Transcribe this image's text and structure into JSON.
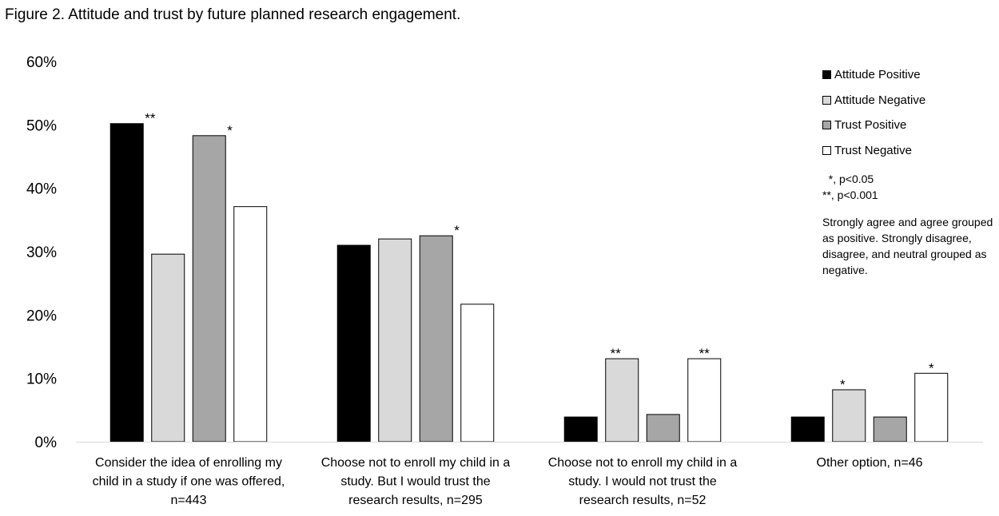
{
  "title": "Figure 2. Attitude and trust by future planned research engagement.",
  "chart_data": {
    "type": "bar",
    "title": "Figure 2. Attitude and trust by future planned research engagement.",
    "xlabel": "",
    "ylabel": "",
    "ylim": [
      0,
      60
    ],
    "y_ticks": [
      "0%",
      "10%",
      "20%",
      "30%",
      "40%",
      "50%",
      "60%"
    ],
    "grid": false,
    "legend_position": "top-right",
    "categories": [
      [
        "Consider the idea of enrolling my",
        "child in a study if one was offered,",
        "n=443"
      ],
      [
        "Choose not to enroll my child in a",
        "study. But I would trust the",
        "research results, n=295"
      ],
      [
        "Choose not to enroll my child in a",
        "study. I would not trust the",
        "research results, n=52"
      ],
      [
        "Other option, n=46"
      ]
    ],
    "series": [
      {
        "name": "Attitude Positive",
        "color": "#000000",
        "values": [
          50.2,
          31.0,
          3.9,
          3.9
        ],
        "significance": [
          "**",
          "",
          "",
          ""
        ]
      },
      {
        "name": "Attitude Negative",
        "color": "#d9d9d9",
        "values": [
          29.6,
          32.0,
          13.1,
          8.2
        ],
        "significance": [
          "",
          "",
          "**",
          "*"
        ]
      },
      {
        "name": "Trust Positive",
        "color": "#a6a6a6",
        "values": [
          48.3,
          32.5,
          4.3,
          3.9
        ],
        "significance": [
          "*",
          "*",
          "",
          ""
        ]
      },
      {
        "name": "Trust Negative",
        "color": "#ffffff",
        "values": [
          37.1,
          21.7,
          13.1,
          10.8
        ],
        "significance": [
          "",
          "",
          "**",
          "*"
        ]
      }
    ]
  },
  "notes": {
    "sig_lines": [
      "  *, p<0.05",
      "**, p<0.001"
    ],
    "grouping": "Strongly agree and agree grouped as positive. Strongly disagree, disagree, and neutral grouped as negative."
  }
}
